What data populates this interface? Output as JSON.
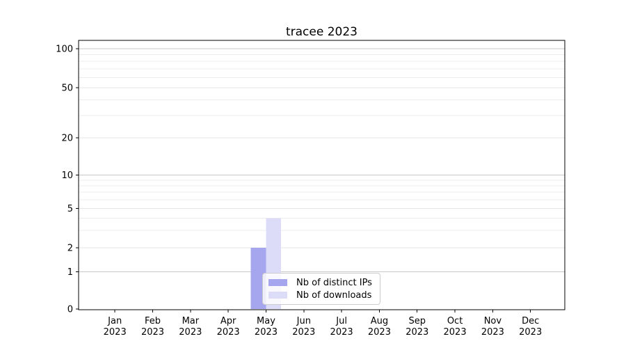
{
  "chart_data": {
    "type": "bar",
    "title": "tracee 2023",
    "categories": [
      "Jan",
      "Feb",
      "Mar",
      "Apr",
      "May",
      "Jun",
      "Jul",
      "Aug",
      "Sep",
      "Oct",
      "Nov",
      "Dec"
    ],
    "x_ticklabel_second_line": "2023",
    "series": [
      {
        "name": "Nb of distinct IPs",
        "color": "#a6a6ef",
        "values": [
          0,
          0,
          0,
          0,
          2,
          0,
          0,
          0,
          0,
          0,
          0,
          0
        ]
      },
      {
        "name": "Nb of downloads",
        "color": "#dcdcf8",
        "values": [
          0,
          0,
          0,
          0,
          4,
          0,
          0,
          0,
          0,
          0,
          0,
          0
        ]
      }
    ],
    "xlabel": "",
    "ylabel": "",
    "yticks": [
      0,
      1,
      2,
      5,
      10,
      20,
      50,
      100
    ],
    "ylim": [
      0,
      116
    ],
    "yscale": "symlog (linear 0-1, logarithmic above 1)",
    "grid": "horizontal major + minor log gridlines",
    "legend_position": "lower center",
    "colors": {
      "major_grid": "#c8c8c8",
      "minor_grid": "#ececec",
      "spine": "#000000",
      "text": "#000000"
    }
  }
}
